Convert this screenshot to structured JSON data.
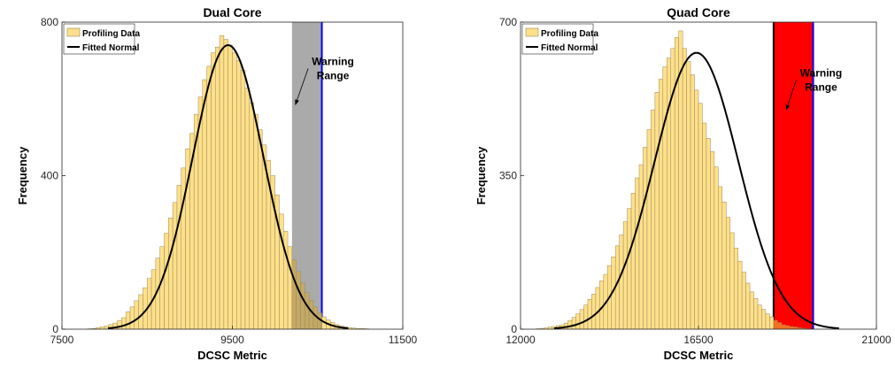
{
  "chart_data": [
    {
      "type": "histogram",
      "title": "Dual Core",
      "xlabel": "DCSC Metric",
      "ylabel": "Frequency",
      "xlim": [
        7500,
        11500
      ],
      "ylim": [
        0,
        800
      ],
      "xticks": [
        "7500",
        "9500",
        "11500"
      ],
      "yticks": [
        "0",
        "400",
        "800"
      ],
      "bin_start": 7800,
      "bin_width": 50,
      "counts": [
        1,
        2,
        4,
        6,
        8,
        12,
        16,
        22,
        30,
        45,
        58,
        74,
        90,
        108,
        132,
        155,
        185,
        215,
        250,
        290,
        330,
        375,
        420,
        470,
        510,
        560,
        605,
        650,
        685,
        720,
        735,
        765,
        755,
        740,
        720,
        700,
        675,
        628,
        590,
        560,
        520,
        480,
        440,
        400,
        350,
        300,
        255,
        215,
        180,
        150,
        120,
        95,
        75,
        58,
        42,
        32,
        24,
        18,
        12,
        9,
        6,
        4,
        3,
        2,
        2,
        1
      ],
      "fit": {
        "name": "Fitted Normal",
        "mean": 9450,
        "std": 415,
        "peak": 740
      },
      "warning_band": {
        "label": "Warning Range",
        "x0": 10200,
        "x1": 10550,
        "fill": "#aaaaaa",
        "edge": "#0000ff"
      },
      "annotation": {
        "lines": [
          "Warning",
          "Range"
        ],
        "arrow_from": [
          10680,
          670
        ],
        "arrow_to": [
          10240,
          585
        ]
      },
      "legend": {
        "position": "top-left",
        "entries": [
          "Profiling Data",
          "Fitted Normal"
        ]
      },
      "colors": {
        "bar": "#ffe08a",
        "bar_edge": "#9a8a5a",
        "fit": "#000000",
        "highlight": "#c9a95a"
      },
      "highlight_color": "#c9a95a"
    },
    {
      "type": "histogram",
      "title": "Quad Core",
      "xlabel": "DCSC Metric",
      "ylabel": "Frequency",
      "xlim": [
        12000,
        21000
      ],
      "ylim": [
        0,
        700
      ],
      "xticks": [
        "12000",
        "16500",
        "21000"
      ],
      "yticks": [
        "0",
        "350",
        "700"
      ],
      "bin_start": 12400,
      "bin_width": 100,
      "counts": [
        1,
        2,
        3,
        5,
        6,
        8,
        10,
        14,
        20,
        27,
        35,
        45,
        55,
        68,
        80,
        95,
        110,
        125,
        145,
        165,
        190,
        215,
        245,
        275,
        310,
        345,
        375,
        415,
        455,
        500,
        540,
        570,
        598,
        618,
        640,
        665,
        680,
        640,
        610,
        580,
        545,
        515,
        470,
        435,
        405,
        370,
        325,
        290,
        255,
        220,
        185,
        155,
        130,
        105,
        85,
        70,
        55,
        45,
        35,
        28,
        20,
        15,
        10,
        8,
        6,
        5,
        3,
        2,
        1
      ],
      "fit": {
        "name": "Fitted Normal",
        "mean": 16450,
        "std": 1060,
        "peak": 630
      },
      "warning_band": {
        "label": "Warning Range",
        "x0": 18400,
        "x1": 19400,
        "fill": "#ff0000",
        "edge": "#0000ff",
        "left_edge": "#000000"
      },
      "annotation": {
        "lines": [
          "Warning",
          "Range"
        ],
        "arrow_from": [
          19600,
          560
        ],
        "arrow_to": [
          18720,
          500
        ]
      },
      "legend": {
        "position": "top-left",
        "entries": [
          "Profiling Data",
          "Fitted Normal"
        ]
      },
      "colors": {
        "bar": "#ffe08a",
        "bar_edge": "#9a8a5a",
        "fit": "#000000",
        "highlight": "#ff8020"
      },
      "highlight_color": "#ff8020"
    }
  ]
}
